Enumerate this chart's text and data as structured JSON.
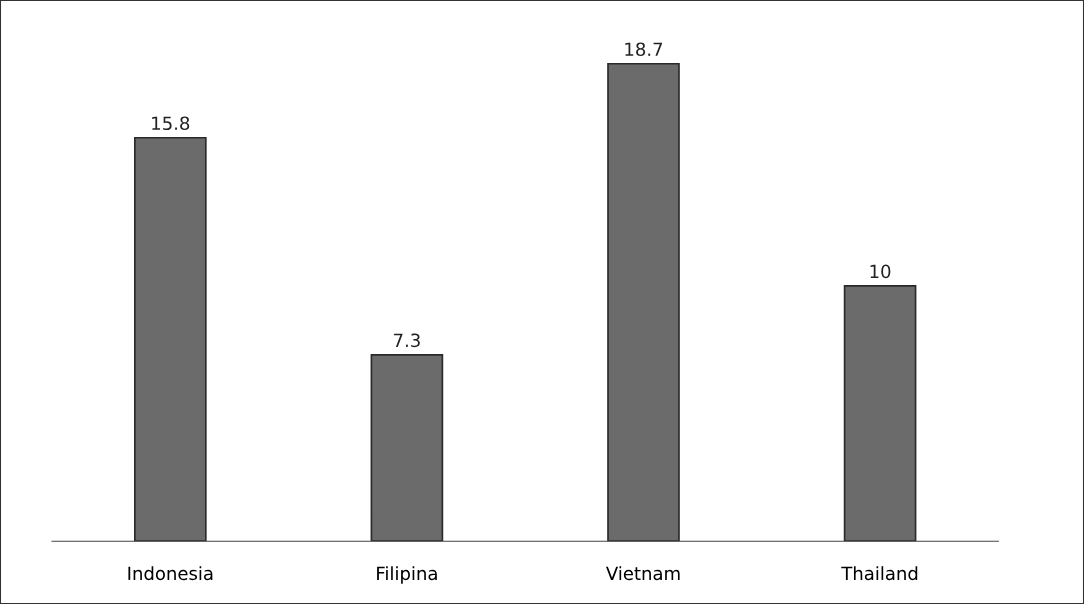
{
  "chart_data": {
    "type": "bar",
    "categories": [
      "Indonesia",
      "Filipina",
      "Vietnam",
      "Thailand"
    ],
    "values": [
      15.8,
      7.3,
      18.7,
      10
    ],
    "color": "#6b6b6b",
    "data_labels": true
  }
}
